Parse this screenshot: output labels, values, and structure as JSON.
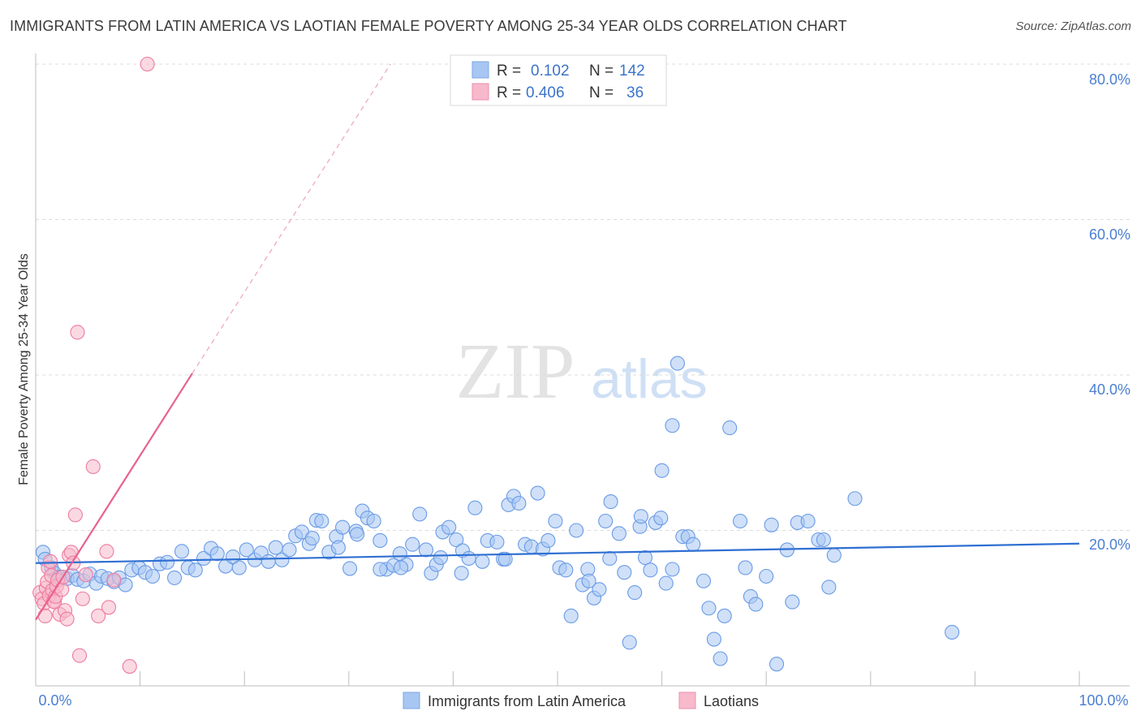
{
  "title": "IMMIGRANTS FROM LATIN AMERICA VS LAOTIAN FEMALE POVERTY AMONG 25-34 YEAR OLDS CORRELATION CHART",
  "source": "Source: ZipAtlas.com",
  "watermark": {
    "zip": "ZIP",
    "atlas": "atlas"
  },
  "legend": {
    "rows": [
      {
        "r_label": "R =",
        "r_value": "0.102",
        "n_label": "N =",
        "n_value": "142",
        "color": "#9bbdf0"
      },
      {
        "r_label": "R =",
        "r_value": "0.406",
        "n_label": "N =",
        "n_value": "36",
        "color": "#f4a8be"
      }
    ]
  },
  "chart_data": {
    "type": "scatter",
    "title": "IMMIGRANTS FROM LATIN AMERICA VS LAOTIAN FEMALE POVERTY AMONG 25-34 YEAR OLDS CORRELATION CHART",
    "xlabel": "",
    "ylabel": "Female Poverty Among 25-34 Year Olds",
    "xlim": [
      0,
      100
    ],
    "ylim": [
      0,
      80
    ],
    "x_tick_labels": [
      "0.0%",
      "100.0%"
    ],
    "y_tick_labels": [
      "20.0%",
      "40.0%",
      "60.0%",
      "80.0%"
    ],
    "y_ticks": [
      20,
      40,
      60,
      80
    ],
    "grid": true,
    "legend_position": "top-center",
    "series": [
      {
        "name": "Immigrants from Latin America",
        "color": "#6a9be6",
        "fill": "#a8c6f2",
        "trend": {
          "x": [
            0,
            100
          ],
          "y": [
            15.8,
            18.3
          ]
        },
        "points": [
          [
            0.7,
            17.2
          ],
          [
            0.9,
            16.3
          ],
          [
            1.5,
            15.2
          ],
          [
            1.8,
            14.5
          ],
          [
            2.3,
            14.0
          ],
          [
            3.0,
            13.8
          ],
          [
            3.5,
            14.2
          ],
          [
            4.0,
            13.7
          ],
          [
            4.6,
            13.5
          ],
          [
            5.2,
            14.4
          ],
          [
            5.8,
            13.2
          ],
          [
            6.3,
            14.1
          ],
          [
            6.9,
            13.8
          ],
          [
            7.5,
            13.4
          ],
          [
            8.0,
            13.9
          ],
          [
            8.6,
            13.0
          ],
          [
            9.2,
            14.9
          ],
          [
            9.9,
            15.2
          ],
          [
            10.5,
            14.6
          ],
          [
            11.2,
            14.1
          ],
          [
            11.9,
            15.7
          ],
          [
            12.6,
            15.9
          ],
          [
            13.3,
            13.9
          ],
          [
            14.0,
            17.3
          ],
          [
            14.6,
            15.2
          ],
          [
            15.3,
            14.9
          ],
          [
            16.1,
            16.4
          ],
          [
            16.8,
            17.7
          ],
          [
            17.4,
            17.0
          ],
          [
            18.2,
            15.4
          ],
          [
            18.9,
            16.6
          ],
          [
            19.5,
            15.2
          ],
          [
            20.2,
            17.5
          ],
          [
            21.0,
            16.2
          ],
          [
            21.6,
            17.1
          ],
          [
            22.3,
            16.0
          ],
          [
            23.0,
            17.8
          ],
          [
            23.6,
            16.2
          ],
          [
            24.3,
            17.5
          ],
          [
            24.9,
            19.3
          ],
          [
            25.5,
            19.8
          ],
          [
            26.2,
            18.3
          ],
          [
            26.9,
            21.3
          ],
          [
            27.4,
            21.2
          ],
          [
            28.1,
            17.2
          ],
          [
            28.8,
            19.2
          ],
          [
            29.4,
            20.4
          ],
          [
            30.1,
            15.1
          ],
          [
            30.7,
            19.9
          ],
          [
            31.3,
            22.5
          ],
          [
            31.8,
            21.6
          ],
          [
            32.4,
            21.2
          ],
          [
            33.0,
            18.7
          ],
          [
            33.6,
            15.0
          ],
          [
            34.3,
            15.5
          ],
          [
            34.9,
            17.0
          ],
          [
            35.5,
            15.6
          ],
          [
            36.1,
            18.2
          ],
          [
            36.8,
            22.1
          ],
          [
            37.4,
            17.5
          ],
          [
            37.9,
            14.5
          ],
          [
            38.4,
            15.6
          ],
          [
            39.0,
            19.8
          ],
          [
            39.6,
            20.4
          ],
          [
            40.3,
            18.8
          ],
          [
            40.9,
            17.4
          ],
          [
            41.5,
            16.4
          ],
          [
            42.1,
            22.9
          ],
          [
            42.8,
            16.0
          ],
          [
            43.3,
            18.7
          ],
          [
            44.2,
            18.5
          ],
          [
            44.8,
            16.3
          ],
          [
            45.3,
            23.3
          ],
          [
            45.8,
            24.4
          ],
          [
            46.3,
            23.5
          ],
          [
            46.9,
            18.2
          ],
          [
            47.5,
            17.9
          ],
          [
            48.1,
            24.8
          ],
          [
            48.6,
            17.6
          ],
          [
            49.1,
            18.7
          ],
          [
            49.8,
            21.2
          ],
          [
            50.2,
            15.2
          ],
          [
            50.8,
            14.9
          ],
          [
            51.3,
            9.0
          ],
          [
            51.8,
            20.0
          ],
          [
            52.4,
            13.0
          ],
          [
            52.9,
            15.0
          ],
          [
            53.5,
            11.3
          ],
          [
            54.0,
            12.4
          ],
          [
            54.6,
            21.2
          ],
          [
            55.1,
            23.7
          ],
          [
            55.9,
            19.6
          ],
          [
            56.4,
            14.6
          ],
          [
            56.9,
            5.6
          ],
          [
            57.4,
            12.0
          ],
          [
            57.9,
            20.5
          ],
          [
            58.4,
            16.5
          ],
          [
            58.9,
            14.9
          ],
          [
            59.4,
            21.0
          ],
          [
            59.9,
            21.6
          ],
          [
            60.4,
            13.2
          ],
          [
            61.0,
            15.0
          ],
          [
            61.5,
            41.5
          ],
          [
            62.0,
            19.2
          ],
          [
            62.5,
            19.2
          ],
          [
            63.0,
            18.2
          ],
          [
            64.0,
            13.5
          ],
          [
            64.5,
            10.0
          ],
          [
            65.0,
            6.0
          ],
          [
            65.6,
            3.5
          ],
          [
            66.0,
            9.0
          ],
          [
            66.5,
            33.2
          ],
          [
            67.5,
            21.2
          ],
          [
            68.0,
            15.2
          ],
          [
            68.5,
            11.5
          ],
          [
            69.0,
            10.5
          ],
          [
            70.0,
            14.1
          ],
          [
            70.5,
            20.7
          ],
          [
            71.0,
            2.8
          ],
          [
            72.0,
            17.5
          ],
          [
            72.5,
            10.8
          ],
          [
            73.0,
            21.0
          ],
          [
            74.0,
            21.2
          ],
          [
            75.0,
            18.8
          ],
          [
            75.5,
            18.8
          ],
          [
            76.0,
            12.7
          ],
          [
            76.5,
            16.8
          ],
          [
            78.5,
            24.1
          ],
          [
            87.8,
            6.9
          ],
          [
            60.0,
            27.7
          ],
          [
            61.0,
            33.5
          ],
          [
            58.0,
            21.8
          ],
          [
            55.0,
            16.4
          ],
          [
            53.0,
            13.5
          ],
          [
            45.0,
            16.3
          ],
          [
            40.8,
            14.5
          ],
          [
            38.8,
            16.5
          ],
          [
            35.0,
            15.2
          ],
          [
            33.0,
            15.0
          ],
          [
            30.8,
            19.5
          ],
          [
            29.0,
            17.8
          ],
          [
            26.5,
            19.0
          ]
        ]
      },
      {
        "name": "Laotians",
        "color": "#ee7aa0",
        "fill": "#f7b9cb",
        "trend": {
          "x": [
            0,
            15
          ],
          "y": [
            8.5,
            40.2
          ],
          "dashed_to": {
            "x": 34,
            "y": 80
          }
        },
        "points": [
          [
            0.4,
            12.0
          ],
          [
            0.6,
            11.2
          ],
          [
            0.8,
            10.6
          ],
          [
            0.9,
            9.0
          ],
          [
            1.0,
            12.6
          ],
          [
            1.1,
            13.4
          ],
          [
            1.2,
            15.2
          ],
          [
            1.3,
            11.6
          ],
          [
            1.4,
            16.0
          ],
          [
            1.5,
            14.2
          ],
          [
            1.6,
            12.3
          ],
          [
            1.7,
            10.9
          ],
          [
            1.8,
            10.8
          ],
          [
            1.9,
            11.5
          ],
          [
            2.0,
            12.8
          ],
          [
            2.1,
            13.6
          ],
          [
            2.3,
            9.2
          ],
          [
            2.5,
            12.4
          ],
          [
            2.6,
            14.0
          ],
          [
            2.8,
            9.7
          ],
          [
            3.0,
            8.6
          ],
          [
            3.2,
            16.8
          ],
          [
            3.4,
            17.2
          ],
          [
            3.6,
            15.8
          ],
          [
            3.8,
            22.0
          ],
          [
            4.0,
            45.5
          ],
          [
            4.2,
            3.9
          ],
          [
            4.5,
            11.2
          ],
          [
            4.8,
            14.3
          ],
          [
            5.5,
            28.2
          ],
          [
            6.0,
            9.0
          ],
          [
            6.8,
            17.3
          ],
          [
            7.0,
            10.1
          ],
          [
            7.5,
            13.6
          ],
          [
            9.0,
            2.5
          ],
          [
            10.7,
            80.0
          ]
        ]
      }
    ]
  },
  "bottom_legend": [
    {
      "label": "Immigrants from Latin America",
      "color": "#a8c6f2"
    },
    {
      "label": "Laotians",
      "color": "#f7b9cb"
    }
  ]
}
